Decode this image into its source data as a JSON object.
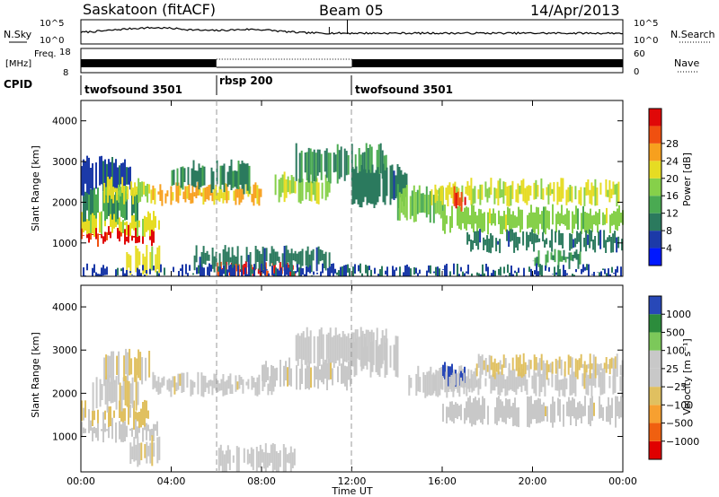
{
  "header": {
    "station": "Saskatoon (fitACF)",
    "beam": "Beam 05",
    "date": "14/Apr/2013"
  },
  "strip_labels": {
    "nsky": "N.Sky",
    "nsearch": "N.Search",
    "freq_line1": "Freq.",
    "freq_line2": "[MHz]",
    "nave": "Nave",
    "cpid": "CPID",
    "noise_ticks": [
      "10^5",
      "10^0"
    ],
    "freq_ticks": [
      "18",
      "8"
    ],
    "nave_ticks": [
      "60",
      "0"
    ]
  },
  "cpid_segments": [
    {
      "label": "twofsound 3501",
      "start": "00:00",
      "end": "06:00"
    },
    {
      "label": "rbsp 200",
      "start": "06:00",
      "end": "12:00"
    },
    {
      "label": "twofsound 3501",
      "start": "12:00",
      "end": "24:00"
    }
  ],
  "colors": {
    "power": [
      "#0018ff",
      "#1c3aa8",
      "#2b7a5e",
      "#4aaa52",
      "#86d04a",
      "#e6dc23",
      "#f7a01e",
      "#f05010",
      "#e00808"
    ],
    "velocity": [
      "#e00000",
      "#f06010",
      "#f7a030",
      "#e0c060",
      "#c8c8c8",
      "#c8c8c8",
      "#7cc85a",
      "#2c8c3c",
      "#2848b8"
    ]
  },
  "chart_data": [
    {
      "type": "heatmap",
      "title": "",
      "xlabel": "",
      "ylabel": "Slant Range [km]",
      "xlim": [
        0,
        24
      ],
      "ylim": [
        180,
        4500
      ],
      "x_ticks": [],
      "y_ticks": [
        "1000",
        "2000",
        "3000",
        "4000"
      ],
      "colorbar": {
        "label": "Power [dB]",
        "ticks": [
          "4",
          "8",
          "12",
          "16",
          "20",
          "24",
          "28"
        ],
        "range": [
          0,
          30
        ]
      },
      "bands": [
        {
          "t0": 0.0,
          "t1": 3.2,
          "r0": 1050,
          "r1": 1300,
          "v": 28
        },
        {
          "t0": 0.0,
          "t1": 3.5,
          "r0": 1300,
          "r1": 1650,
          "v": 18
        },
        {
          "t0": 0.0,
          "t1": 2.5,
          "r0": 1650,
          "r1": 2300,
          "v": 10
        },
        {
          "t0": 0.0,
          "t1": 2.2,
          "r0": 2300,
          "r1": 3000,
          "v": 6
        },
        {
          "t0": 1.0,
          "t1": 3.0,
          "r0": 2100,
          "r1": 2500,
          "v": 17
        },
        {
          "t0": 3.0,
          "t1": 8.0,
          "r0": 2050,
          "r1": 2350,
          "v": 20
        },
        {
          "t0": 4.0,
          "t1": 7.5,
          "r0": 2350,
          "r1": 2900,
          "v": 9
        },
        {
          "t0": 6.0,
          "t1": 9.5,
          "r0": 200,
          "r1": 420,
          "v": 27
        },
        {
          "t0": 5.0,
          "t1": 11.0,
          "r0": 420,
          "r1": 800,
          "v": 8
        },
        {
          "t0": 8.5,
          "t1": 11.0,
          "r0": 2100,
          "r1": 2600,
          "v": 16
        },
        {
          "t0": 9.5,
          "t1": 13.5,
          "r0": 2600,
          "r1": 3300,
          "v": 10
        },
        {
          "t0": 12.0,
          "t1": 14.5,
          "r0": 2000,
          "r1": 2800,
          "v": 8
        },
        {
          "t0": 14.0,
          "t1": 16.0,
          "r0": 1600,
          "r1": 2300,
          "v": 13
        },
        {
          "t0": 15.5,
          "t1": 24.0,
          "r0": 2050,
          "r1": 2450,
          "v": 17
        },
        {
          "t0": 16.0,
          "t1": 24.0,
          "r0": 1350,
          "r1": 1800,
          "v": 15
        },
        {
          "t0": 17.0,
          "t1": 24.0,
          "r0": 900,
          "r1": 1200,
          "v": 8
        },
        {
          "t0": 16.5,
          "t1": 17.0,
          "r0": 1850,
          "r1": 2250,
          "v": 26
        },
        {
          "t0": 2.0,
          "t1": 3.5,
          "r0": 300,
          "r1": 800,
          "v": 18
        },
        {
          "t0": 20.0,
          "t1": 22.5,
          "r0": 500,
          "r1": 700,
          "v": 10
        },
        {
          "t0": 0.0,
          "t1": 24.0,
          "r0": 180,
          "r1": 350,
          "v": 6
        }
      ]
    },
    {
      "type": "heatmap",
      "title": "",
      "xlabel": "Time UT",
      "ylabel": "Slant Range [km]",
      "xlim": [
        0,
        24
      ],
      "ylim": [
        180,
        4500
      ],
      "x_ticks": [
        "00:00",
        "04:00",
        "08:00",
        "12:00",
        "16:00",
        "20:00",
        "00:00"
      ],
      "y_ticks": [
        "1000",
        "2000",
        "3000",
        "4000"
      ],
      "colorbar": {
        "label": "Velocity [m s⁻¹]",
        "ticks": [
          "1000",
          "500",
          "100",
          "25",
          "−25",
          "−100",
          "−500",
          "−1000"
        ],
        "range": [
          -1000,
          1000
        ]
      },
      "bands": [
        {
          "t0": 0.0,
          "t1": 3.5,
          "r0": 1000,
          "r1": 1300,
          "v": 0
        },
        {
          "t0": 0.0,
          "t1": 3.0,
          "r0": 1300,
          "r1": 1700,
          "v": -200
        },
        {
          "t0": 0.5,
          "t1": 2.5,
          "r0": 1700,
          "r1": 2300,
          "v": -60
        },
        {
          "t0": 1.0,
          "t1": 3.0,
          "r0": 2300,
          "r1": 2900,
          "v": -120
        },
        {
          "t0": 3.0,
          "t1": 8.5,
          "r0": 2050,
          "r1": 2350,
          "v": 0
        },
        {
          "t0": 6.0,
          "t1": 9.5,
          "r0": 250,
          "r1": 700,
          "v": 60
        },
        {
          "t0": 8.0,
          "t1": 12.0,
          "r0": 2200,
          "r1": 2700,
          "v": 0
        },
        {
          "t0": 9.5,
          "t1": 13.5,
          "r0": 2700,
          "r1": 3400,
          "v": 0
        },
        {
          "t0": 12.0,
          "t1": 14.0,
          "r0": 2500,
          "r1": 3200,
          "v": 50
        },
        {
          "t0": 14.5,
          "t1": 17.5,
          "r0": 2000,
          "r1": 2500,
          "v": 150
        },
        {
          "t0": 16.0,
          "t1": 17.0,
          "r0": 2300,
          "r1": 2600,
          "v": 900
        },
        {
          "t0": 15.5,
          "t1": 24.0,
          "r0": 2050,
          "r1": 2450,
          "v": 0
        },
        {
          "t0": 16.0,
          "t1": 24.0,
          "r0": 1350,
          "r1": 1800,
          "v": 0
        },
        {
          "t0": 2.0,
          "t1": 3.5,
          "r0": 400,
          "r1": 900,
          "v": -80
        },
        {
          "t0": 17.5,
          "t1": 24.0,
          "r0": 2450,
          "r1": 2800,
          "v": -120
        }
      ]
    }
  ]
}
